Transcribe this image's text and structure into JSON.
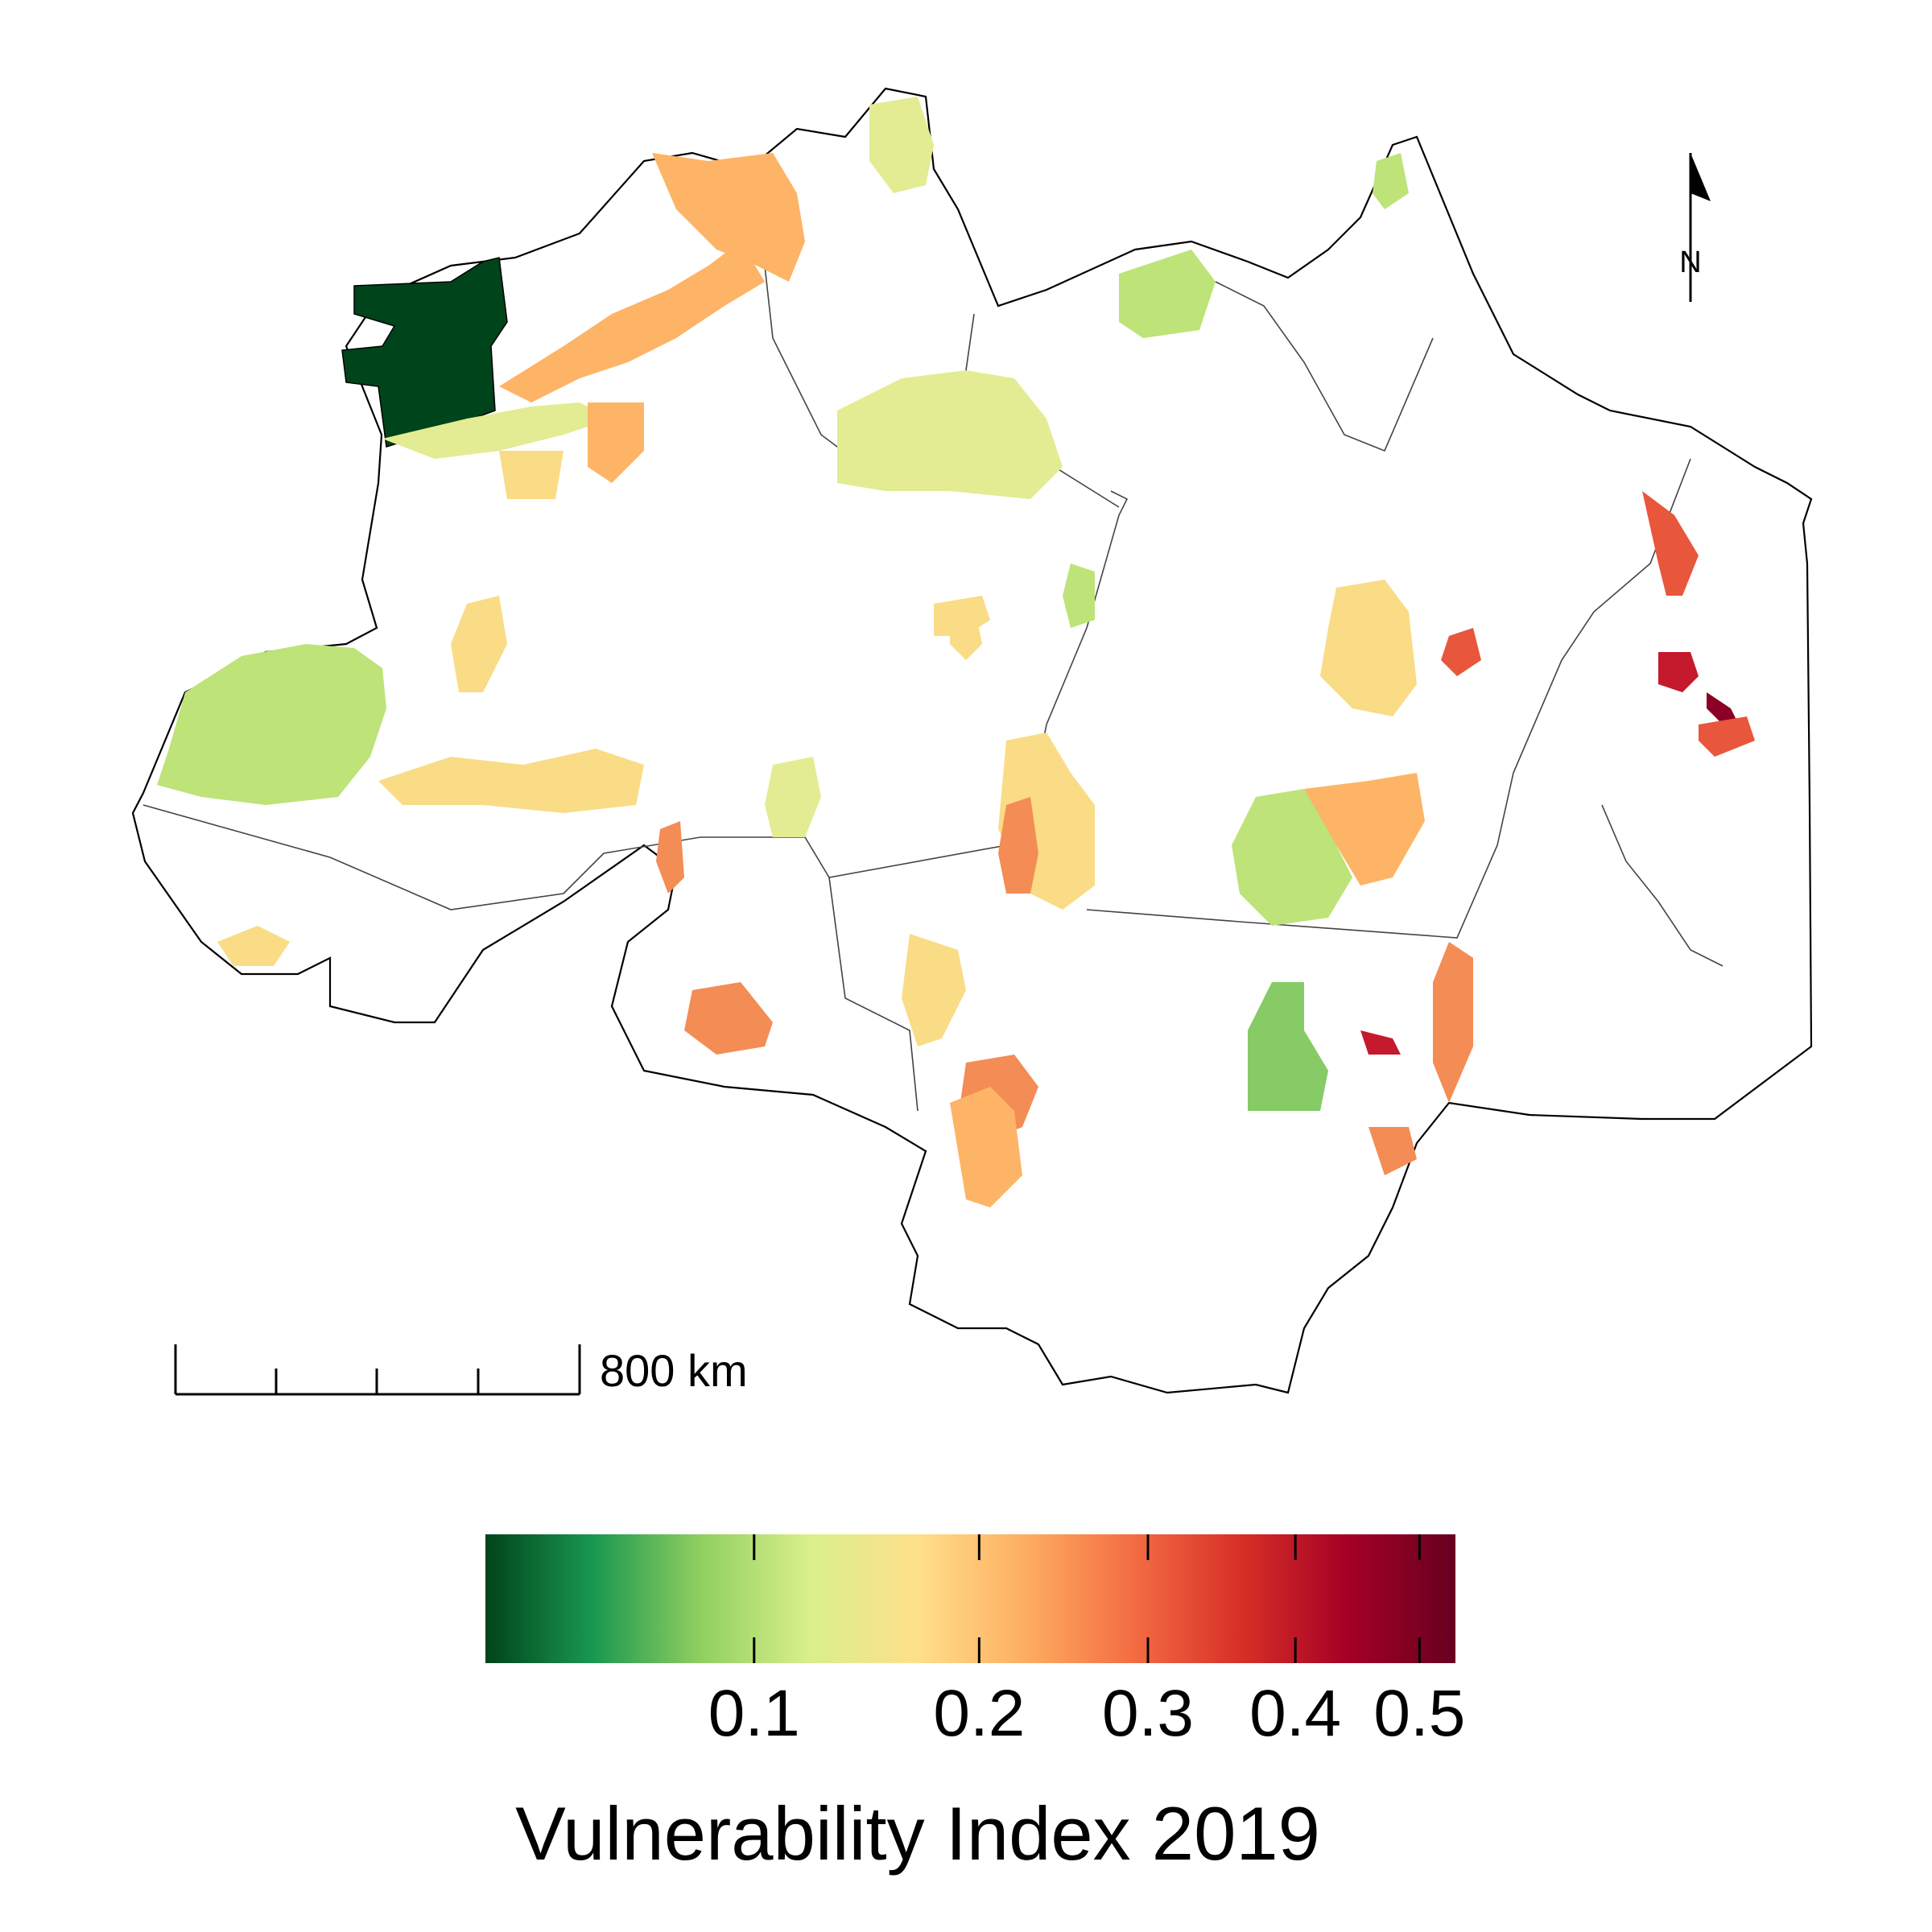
{
  "legend": {
    "title": "Vulnerability Index 2019",
    "ticks": [
      {
        "value": 0.1,
        "label": "0.1"
      },
      {
        "value": 0.2,
        "label": "0.2"
      },
      {
        "value": 0.3,
        "label": "0.3"
      },
      {
        "value": 0.4,
        "label": "0.4"
      },
      {
        "value": 0.5,
        "label": "0.5"
      }
    ],
    "gradient_stops": [
      "#00441b",
      "#1a9850",
      "#91cf60",
      "#d9ef8b",
      "#fee08b",
      "#fdae61",
      "#f46d43",
      "#d73027",
      "#a50026",
      "#67001f"
    ]
  },
  "scale_bar": {
    "label": "800 km"
  },
  "north_arrow": {
    "label": "N"
  },
  "colors": {
    "very_low": "#00441b",
    "low": "#86cb66",
    "low_mid": "#bde379",
    "mid_low": "#e3ec92",
    "mid": "#f9dc85",
    "mid_high": "#fdb466",
    "high": "#f48c55",
    "very_high": "#e8563c",
    "extreme": "#c5192d",
    "max": "#8b0025",
    "boundary": "#000000"
  }
}
